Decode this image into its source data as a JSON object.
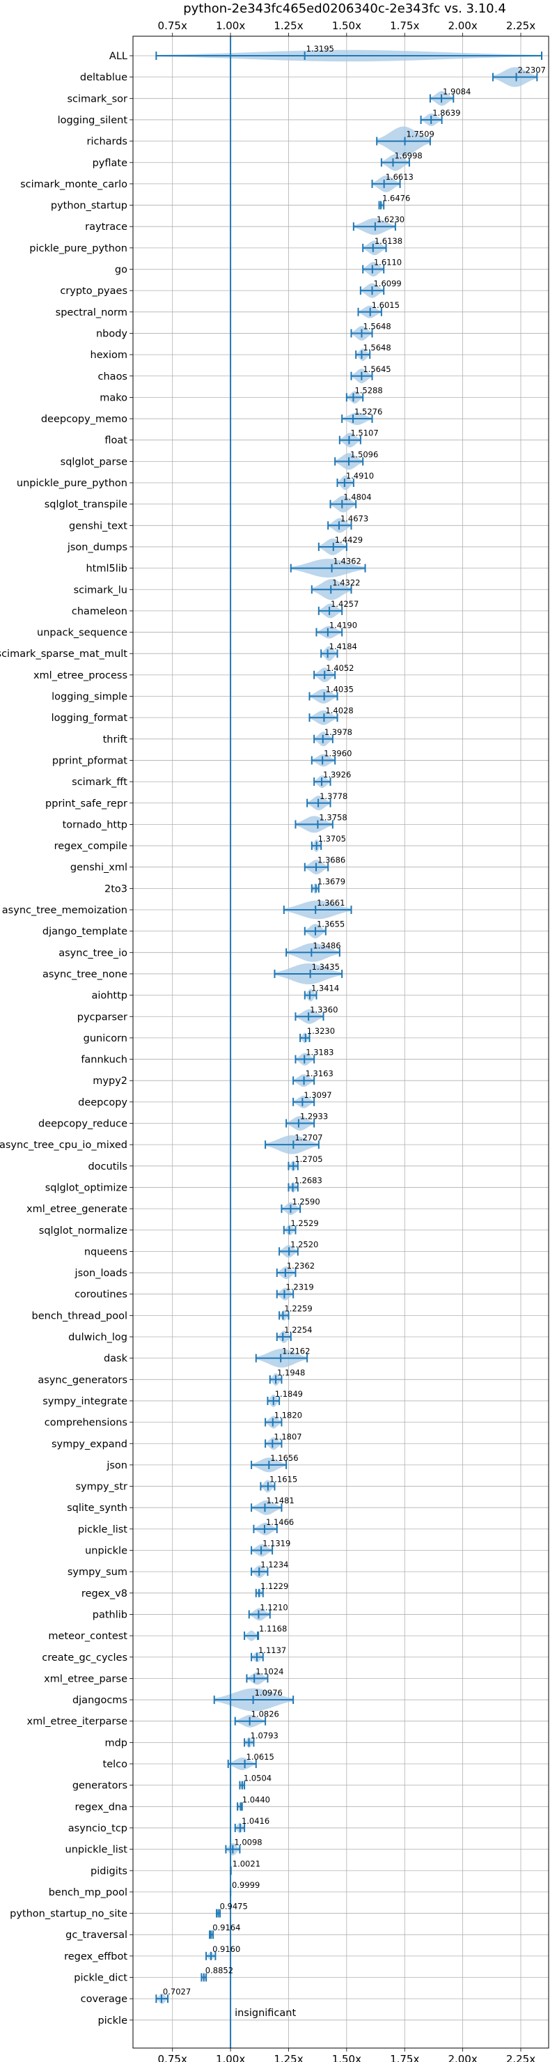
{
  "chart_data": {
    "type": "violin",
    "title": "python-2e343fc465ed0206340c-2e343fc vs. 3.10.4",
    "xlabel": "",
    "ylabel": "",
    "xlim": [
      0.58,
      2.37
    ],
    "x_ticks": [
      {
        "value": 0.75,
        "label": "0.75x"
      },
      {
        "value": 1.0,
        "label": "1.00x"
      },
      {
        "value": 1.25,
        "label": "1.25x"
      },
      {
        "value": 1.5,
        "label": "1.50x"
      },
      {
        "value": 1.75,
        "label": "1.75x"
      },
      {
        "value": 2.0,
        "label": "2.00x"
      },
      {
        "value": 2.25,
        "label": "2.25x"
      }
    ],
    "reference_line": 1.0,
    "grid": true,
    "colors": {
      "violin": "#a6c8e6",
      "line": "#1f77b4"
    },
    "annotations": [
      {
        "text": "insignificant",
        "row": "pickle"
      }
    ],
    "benchmarks": [
      {
        "name": "ALL",
        "value": 1.3195,
        "label": "1.3195",
        "min": 0.68,
        "max": 2.34,
        "width": 0.55
      },
      {
        "name": "deltablue",
        "value": 2.2307,
        "label": "2.2307",
        "min": 2.13,
        "max": 2.32,
        "width": 0.95
      },
      {
        "name": "scimark_sor",
        "value": 1.9084,
        "label": "1.9084",
        "min": 1.86,
        "max": 1.96,
        "width": 0.7
      },
      {
        "name": "logging_silent",
        "value": 1.8639,
        "label": "1.8639",
        "min": 1.82,
        "max": 1.91,
        "width": 0.6
      },
      {
        "name": "richards",
        "value": 1.7509,
        "label": "1.7509",
        "min": 1.63,
        "max": 1.86,
        "width": 1.4
      },
      {
        "name": "pyflate",
        "value": 1.6998,
        "label": "1.6998",
        "min": 1.65,
        "max": 1.77,
        "width": 0.8
      },
      {
        "name": "scimark_monte_carlo",
        "value": 1.6613,
        "label": "1.6613",
        "min": 1.61,
        "max": 1.73,
        "width": 0.8
      },
      {
        "name": "python_startup",
        "value": 1.6476,
        "label": "1.6476",
        "min": 1.64,
        "max": 1.66,
        "width": 0.3
      },
      {
        "name": "raytrace",
        "value": 1.623,
        "label": "1.6230",
        "min": 1.53,
        "max": 1.71,
        "width": 0.8
      },
      {
        "name": "pickle_pure_python",
        "value": 1.6138,
        "label": "1.6138",
        "min": 1.57,
        "max": 1.67,
        "width": 0.7
      },
      {
        "name": "go",
        "value": 1.611,
        "label": "1.6110",
        "min": 1.57,
        "max": 1.66,
        "width": 0.7
      },
      {
        "name": "crypto_pyaes",
        "value": 1.6099,
        "label": "1.6099",
        "min": 1.56,
        "max": 1.66,
        "width": 0.7
      },
      {
        "name": "spectral_norm",
        "value": 1.6015,
        "label": "1.6015",
        "min": 1.55,
        "max": 1.65,
        "width": 0.6
      },
      {
        "name": "nbody",
        "value": 1.5648,
        "label": "1.5648",
        "min": 1.52,
        "max": 1.61,
        "width": 0.7
      },
      {
        "name": "hexiom",
        "value": 1.5648,
        "label": "1.5648",
        "min": 1.54,
        "max": 1.6,
        "width": 0.6
      },
      {
        "name": "chaos",
        "value": 1.5645,
        "label": "1.5645",
        "min": 1.52,
        "max": 1.61,
        "width": 0.7
      },
      {
        "name": "mako",
        "value": 1.5288,
        "label": "1.5288",
        "min": 1.5,
        "max": 1.57,
        "width": 0.6
      },
      {
        "name": "deepcopy_memo",
        "value": 1.5276,
        "label": "1.5276",
        "min": 1.48,
        "max": 1.61,
        "width": 0.6
      },
      {
        "name": "float",
        "value": 1.5107,
        "label": "1.5107",
        "min": 1.47,
        "max": 1.56,
        "width": 0.7
      },
      {
        "name": "sqlglot_parse",
        "value": 1.5096,
        "label": "1.5096",
        "min": 1.45,
        "max": 1.57,
        "width": 0.8
      },
      {
        "name": "unpickle_pure_python",
        "value": 1.491,
        "label": "1.4910",
        "min": 1.46,
        "max": 1.53,
        "width": 0.7
      },
      {
        "name": "sqlglot_transpile",
        "value": 1.4804,
        "label": "1.4804",
        "min": 1.43,
        "max": 1.54,
        "width": 0.8
      },
      {
        "name": "genshi_text",
        "value": 1.4673,
        "label": "1.4673",
        "min": 1.42,
        "max": 1.52,
        "width": 0.7
      },
      {
        "name": "json_dumps",
        "value": 1.4429,
        "label": "1.4429",
        "min": 1.38,
        "max": 1.5,
        "width": 0.8
      },
      {
        "name": "html5lib",
        "value": 1.4362,
        "label": "1.4362",
        "min": 1.26,
        "max": 1.58,
        "width": 0.9
      },
      {
        "name": "scimark_lu",
        "value": 1.4322,
        "label": "1.4322",
        "min": 1.35,
        "max": 1.52,
        "width": 1.0
      },
      {
        "name": "chameleon",
        "value": 1.4257,
        "label": "1.4257",
        "min": 1.38,
        "max": 1.48,
        "width": 0.7
      },
      {
        "name": "unpack_sequence",
        "value": 1.419,
        "label": "1.4190",
        "min": 1.37,
        "max": 1.48,
        "width": 0.6
      },
      {
        "name": "scimark_sparse_mat_mult",
        "value": 1.4184,
        "label": "1.4184",
        "min": 1.39,
        "max": 1.46,
        "width": 0.7
      },
      {
        "name": "xml_etree_process",
        "value": 1.4052,
        "label": "1.4052",
        "min": 1.36,
        "max": 1.45,
        "width": 0.7
      },
      {
        "name": "logging_simple",
        "value": 1.4035,
        "label": "1.4035",
        "min": 1.34,
        "max": 1.46,
        "width": 0.7
      },
      {
        "name": "logging_format",
        "value": 1.4028,
        "label": "1.4028",
        "min": 1.34,
        "max": 1.46,
        "width": 0.7
      },
      {
        "name": "thrift",
        "value": 1.3978,
        "label": "1.3978",
        "min": 1.36,
        "max": 1.44,
        "width": 0.7
      },
      {
        "name": "pprint_pformat",
        "value": 1.396,
        "label": "1.3960",
        "min": 1.35,
        "max": 1.45,
        "width": 0.6
      },
      {
        "name": "scimark_fft",
        "value": 1.3926,
        "label": "1.3926",
        "min": 1.36,
        "max": 1.43,
        "width": 0.6
      },
      {
        "name": "pprint_safe_repr",
        "value": 1.3778,
        "label": "1.3778",
        "min": 1.33,
        "max": 1.43,
        "width": 0.7
      },
      {
        "name": "tornado_http",
        "value": 1.3758,
        "label": "1.3758",
        "min": 1.28,
        "max": 1.44,
        "width": 0.8
      },
      {
        "name": "regex_compile",
        "value": 1.3705,
        "label": "1.3705",
        "min": 1.35,
        "max": 1.39,
        "width": 0.6
      },
      {
        "name": "genshi_xml",
        "value": 1.3686,
        "label": "1.3686",
        "min": 1.32,
        "max": 1.42,
        "width": 0.7
      },
      {
        "name": "2to3",
        "value": 1.3679,
        "label": "1.3679",
        "min": 1.35,
        "max": 1.38,
        "width": 0.5
      },
      {
        "name": "async_tree_memoization",
        "value": 1.3661,
        "label": "1.3661",
        "min": 1.23,
        "max": 1.52,
        "width": 0.9
      },
      {
        "name": "django_template",
        "value": 1.3655,
        "label": "1.3655",
        "min": 1.32,
        "max": 1.41,
        "width": 0.7
      },
      {
        "name": "async_tree_io",
        "value": 1.3486,
        "label": "1.3486",
        "min": 1.24,
        "max": 1.47,
        "width": 0.9
      },
      {
        "name": "async_tree_none",
        "value": 1.3435,
        "label": "1.3435",
        "min": 1.19,
        "max": 1.48,
        "width": 1.0
      },
      {
        "name": "aiohttp",
        "value": 1.3414,
        "label": "1.3414",
        "min": 1.32,
        "max": 1.37,
        "width": 0.6
      },
      {
        "name": "pycparser",
        "value": 1.336,
        "label": "1.3360",
        "min": 1.28,
        "max": 1.4,
        "width": 0.7
      },
      {
        "name": "gunicorn",
        "value": 1.323,
        "label": "1.3230",
        "min": 1.3,
        "max": 1.34,
        "width": 0.5
      },
      {
        "name": "fannkuch",
        "value": 1.3183,
        "label": "1.3183",
        "min": 1.28,
        "max": 1.36,
        "width": 0.6
      },
      {
        "name": "mypy2",
        "value": 1.3163,
        "label": "1.3163",
        "min": 1.27,
        "max": 1.36,
        "width": 0.6
      },
      {
        "name": "deepcopy",
        "value": 1.3097,
        "label": "1.3097",
        "min": 1.27,
        "max": 1.36,
        "width": 0.6
      },
      {
        "name": "deepcopy_reduce",
        "value": 1.2933,
        "label": "1.2933",
        "min": 1.24,
        "max": 1.36,
        "width": 0.7
      },
      {
        "name": "async_tree_cpu_io_mixed",
        "value": 1.2707,
        "label": "1.2707",
        "min": 1.15,
        "max": 1.38,
        "width": 0.9
      },
      {
        "name": "docutils",
        "value": 1.2705,
        "label": "1.2705",
        "min": 1.25,
        "max": 1.29,
        "width": 0.5
      },
      {
        "name": "sqlglot_optimize",
        "value": 1.2683,
        "label": "1.2683",
        "min": 1.25,
        "max": 1.29,
        "width": 0.5
      },
      {
        "name": "xml_etree_generate",
        "value": 1.259,
        "label": "1.2590",
        "min": 1.22,
        "max": 1.3,
        "width": 0.6
      },
      {
        "name": "sqlglot_normalize",
        "value": 1.2529,
        "label": "1.2529",
        "min": 1.23,
        "max": 1.28,
        "width": 0.5
      },
      {
        "name": "nqueens",
        "value": 1.252,
        "label": "1.2520",
        "min": 1.21,
        "max": 1.29,
        "width": 0.6
      },
      {
        "name": "json_loads",
        "value": 1.2362,
        "label": "1.2362",
        "min": 1.2,
        "max": 1.28,
        "width": 0.6
      },
      {
        "name": "coroutines",
        "value": 1.2319,
        "label": "1.2319",
        "min": 1.2,
        "max": 1.27,
        "width": 0.6
      },
      {
        "name": "bench_thread_pool",
        "value": 1.2259,
        "label": "1.2259",
        "min": 1.21,
        "max": 1.25,
        "width": 0.5
      },
      {
        "name": "dulwich_log",
        "value": 1.2254,
        "label": "1.2254",
        "min": 1.2,
        "max": 1.26,
        "width": 0.6
      },
      {
        "name": "dask",
        "value": 1.2162,
        "label": "1.2162",
        "min": 1.11,
        "max": 1.33,
        "width": 0.9
      },
      {
        "name": "async_generators",
        "value": 1.1948,
        "label": "1.1948",
        "min": 1.17,
        "max": 1.22,
        "width": 0.6
      },
      {
        "name": "sympy_integrate",
        "value": 1.1849,
        "label": "1.1849",
        "min": 1.16,
        "max": 1.21,
        "width": 0.6
      },
      {
        "name": "comprehensions",
        "value": 1.182,
        "label": "1.1820",
        "min": 1.15,
        "max": 1.22,
        "width": 0.6
      },
      {
        "name": "sympy_expand",
        "value": 1.1807,
        "label": "1.1807",
        "min": 1.15,
        "max": 1.22,
        "width": 0.6
      },
      {
        "name": "json",
        "value": 1.1656,
        "label": "1.1656",
        "min": 1.09,
        "max": 1.24,
        "width": 0.7
      },
      {
        "name": "sympy_str",
        "value": 1.1615,
        "label": "1.1615",
        "min": 1.13,
        "max": 1.19,
        "width": 0.6
      },
      {
        "name": "sqlite_synth",
        "value": 1.1481,
        "label": "1.1481",
        "min": 1.09,
        "max": 1.22,
        "width": 0.7
      },
      {
        "name": "pickle_list",
        "value": 1.1466,
        "label": "1.1466",
        "min": 1.1,
        "max": 1.2,
        "width": 0.6
      },
      {
        "name": "unpickle",
        "value": 1.1319,
        "label": "1.1319",
        "min": 1.09,
        "max": 1.18,
        "width": 0.6
      },
      {
        "name": "sympy_sum",
        "value": 1.1234,
        "label": "1.1234",
        "min": 1.09,
        "max": 1.16,
        "width": 0.6
      },
      {
        "name": "regex_v8",
        "value": 1.1229,
        "label": "1.1229",
        "min": 1.11,
        "max": 1.14,
        "width": 0.4
      },
      {
        "name": "pathlib",
        "value": 1.121,
        "label": "1.1210",
        "min": 1.08,
        "max": 1.17,
        "width": 0.6
      },
      {
        "name": "meteor_contest",
        "value": 1.1168,
        "label": "1.1168",
        "min": 1.06,
        "max": 1.12,
        "width": 0.5
      },
      {
        "name": "create_gc_cycles",
        "value": 1.1137,
        "label": "1.1137",
        "min": 1.09,
        "max": 1.14,
        "width": 0.5
      },
      {
        "name": "xml_etree_parse",
        "value": 1.1024,
        "label": "1.1024",
        "min": 1.07,
        "max": 1.16,
        "width": 0.6
      },
      {
        "name": "djangocms",
        "value": 1.0976,
        "label": "1.0976",
        "min": 0.93,
        "max": 1.27,
        "width": 1.1
      },
      {
        "name": "xml_etree_iterparse",
        "value": 1.0826,
        "label": "1.0826",
        "min": 1.02,
        "max": 1.15,
        "width": 0.6
      },
      {
        "name": "mdp",
        "value": 1.0793,
        "label": "1.0793",
        "min": 1.06,
        "max": 1.1,
        "width": 0.5
      },
      {
        "name": "telco",
        "value": 1.0615,
        "label": "1.0615",
        "min": 0.99,
        "max": 1.11,
        "width": 0.6
      },
      {
        "name": "generators",
        "value": 1.0504,
        "label": "1.0504",
        "min": 1.04,
        "max": 1.06,
        "width": 0.4
      },
      {
        "name": "regex_dna",
        "value": 1.044,
        "label": "1.0440",
        "min": 1.03,
        "max": 1.05,
        "width": 0.4
      },
      {
        "name": "asyncio_tcp",
        "value": 1.0416,
        "label": "1.0416",
        "min": 1.02,
        "max": 1.06,
        "width": 0.5
      },
      {
        "name": "unpickle_list",
        "value": 1.0098,
        "label": "1.0098",
        "min": 0.98,
        "max": 1.04,
        "width": 0.6
      },
      {
        "name": "pidigits",
        "value": 1.0021,
        "label": "1.0021",
        "min": 1.0,
        "max": 1.0,
        "width": 0.0
      },
      {
        "name": "bench_mp_pool",
        "value": 0.9999,
        "label": "0.9999",
        "min": 1.0,
        "max": 1.0,
        "width": 0.0
      },
      {
        "name": "python_startup_no_site",
        "value": 0.9475,
        "label": "0.9475",
        "min": 0.94,
        "max": 0.955,
        "width": 0.3
      },
      {
        "name": "gc_traversal",
        "value": 0.9164,
        "label": "0.9164",
        "min": 0.91,
        "max": 0.925,
        "width": 0.3
      },
      {
        "name": "regex_effbot",
        "value": 0.916,
        "label": "0.9160",
        "min": 0.895,
        "max": 0.935,
        "width": 0.4
      },
      {
        "name": "pickle_dict",
        "value": 0.8852,
        "label": "0.8852",
        "min": 0.875,
        "max": 0.895,
        "width": 0.4
      },
      {
        "name": "coverage",
        "value": 0.7027,
        "label": "0.7027",
        "min": 0.68,
        "max": 0.73,
        "width": 0.5
      },
      {
        "name": "pickle",
        "value": null,
        "label": "",
        "min": null,
        "max": null,
        "width": 0.0
      }
    ]
  }
}
